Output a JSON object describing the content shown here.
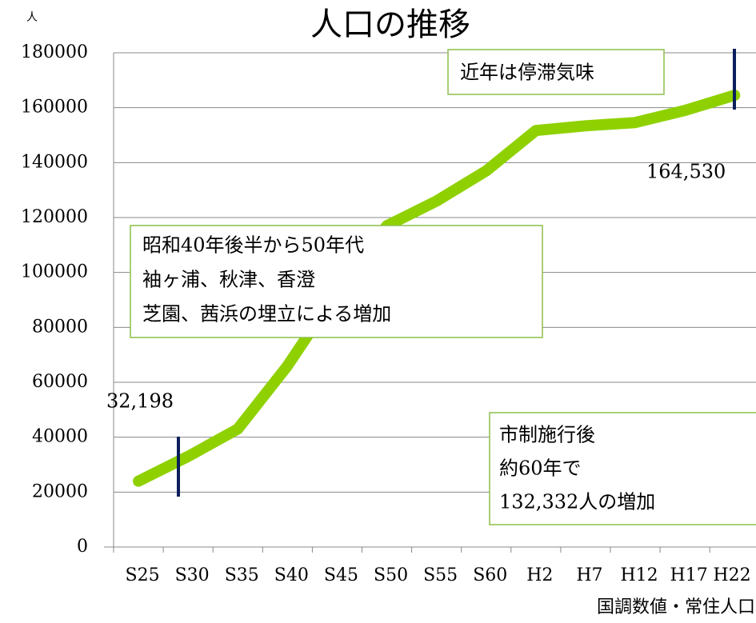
{
  "chart_data": {
    "type": "line",
    "title": "人口の推移",
    "unit": "人",
    "source": "国調数値・常住人口",
    "categories": [
      "S25",
      "S30",
      "S35",
      "S40",
      "S45",
      "S50",
      "S55",
      "S60",
      "H2",
      "H7",
      "H12",
      "H17",
      "H22"
    ],
    "series": [
      {
        "name": "人口",
        "color": "#8fd100",
        "values": [
          24000,
          33000,
          43000,
          66000,
          93000,
          117000,
          126000,
          137000,
          151700,
          153400,
          154600,
          159000,
          164530
        ]
      }
    ],
    "ylim": [
      0,
      180000
    ],
    "yticks": [
      0,
      20000,
      40000,
      60000,
      80000,
      100000,
      120000,
      140000,
      160000,
      180000
    ],
    "grid": true,
    "annotations": [
      {
        "lines": [
          "近年は停滞気味"
        ]
      },
      {
        "lines": [
          "昭和40年後半から50年代",
          "袖ヶ浦、秋津、香澄",
          "芝園、茜浜の埋立による増加"
        ]
      },
      {
        "lines": [
          "市制施行後",
          "約60年で",
          "132,332人の増加"
        ]
      },
      {
        "lines": [
          "32,198"
        ]
      },
      {
        "lines": [
          "164,530"
        ]
      }
    ]
  }
}
